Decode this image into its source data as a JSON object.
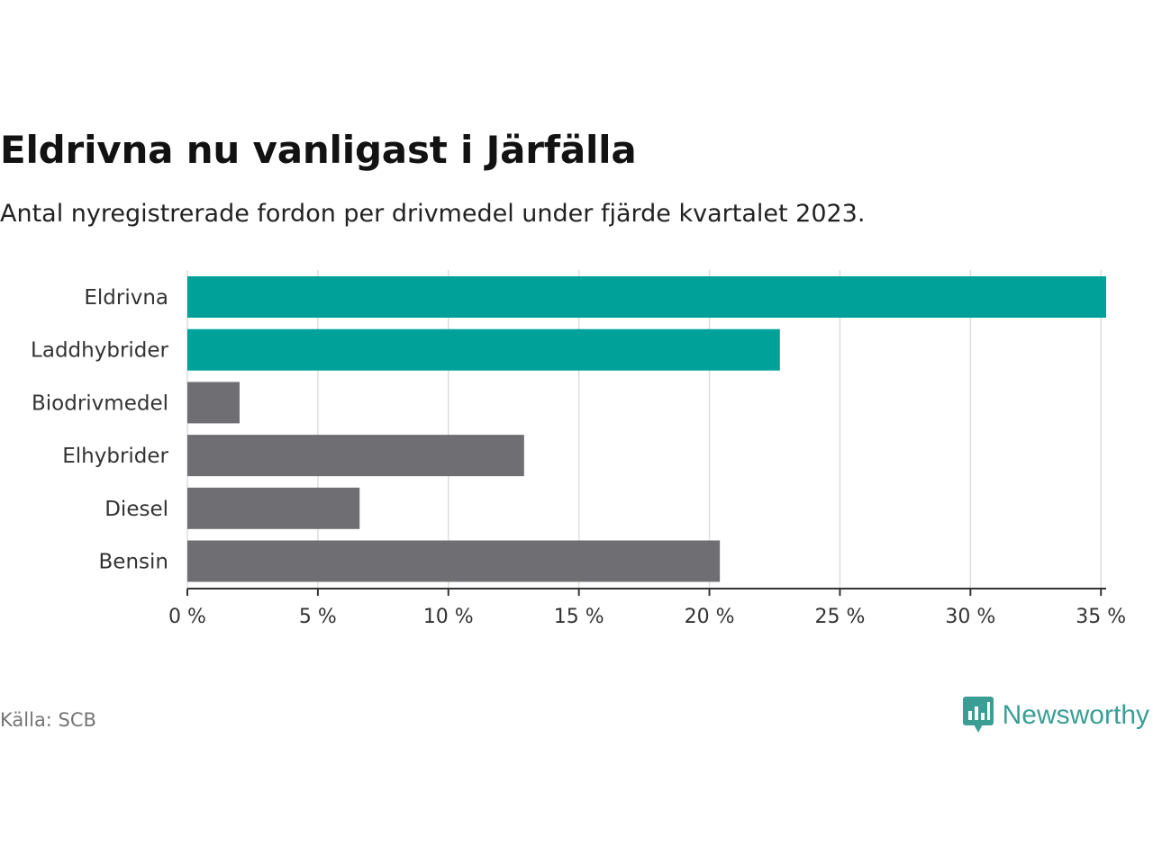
{
  "chart_data": {
    "type": "bar",
    "orientation": "horizontal",
    "title": "Eldrivna nu vanligast i Järfälla",
    "subtitle": "Antal nyregistrerade fordon per drivmedel under fjärde kvartalet 2023.",
    "categories": [
      "Eldrivna",
      "Laddhybrider",
      "Biodrivmedel",
      "Elhybrider",
      "Diesel",
      "Bensin"
    ],
    "values": [
      35.2,
      22.7,
      2.0,
      12.9,
      6.6,
      20.4
    ],
    "highlighted": [
      true,
      true,
      false,
      false,
      false,
      false
    ],
    "colors": {
      "highlight": "#00a199",
      "default": "#6f6e73",
      "grid": "#dddddd",
      "axis": "#333333"
    },
    "xlabel": "",
    "ylabel": "",
    "xlim": [
      0,
      35.2
    ],
    "xticks": [
      0,
      5,
      10,
      15,
      20,
      25,
      30,
      35
    ],
    "xtick_labels": [
      "0 %",
      "5 %",
      "10 %",
      "15 %",
      "20 %",
      "25 %",
      "30 %",
      "35 %"
    ],
    "grid": true
  },
  "footer": {
    "source": "Källa: SCB",
    "brand": "Newsworthy",
    "brand_icon": "newsworthy-bar-chart-icon"
  }
}
